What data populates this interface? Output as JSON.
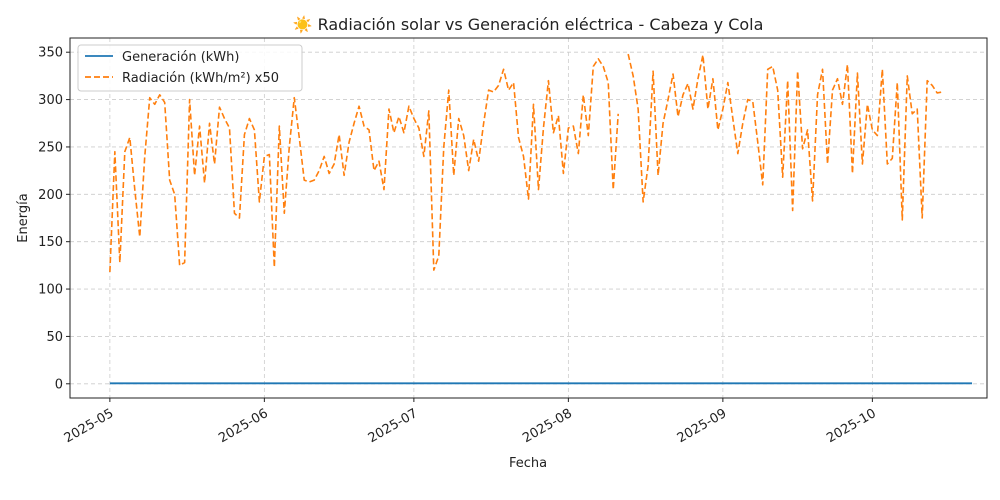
{
  "chart_data": {
    "type": "line",
    "title": "☀️ Radiación solar vs Generación eléctrica - Cabeza y Cola",
    "xlabel": "Fecha",
    "ylabel": "Energía",
    "xlim": [
      "2025-04-23",
      "2025-10-24"
    ],
    "ylim": [
      -15,
      365
    ],
    "yticks": [
      0,
      50,
      100,
      150,
      200,
      250,
      300,
      350
    ],
    "xticks": [
      "2025-05-01",
      "2025-06-01",
      "2025-07-01",
      "2025-08-01",
      "2025-09-01",
      "2025-10-01"
    ],
    "xtick_labels": [
      "2025-05",
      "2025-06",
      "2025-07",
      "2025-08",
      "2025-09",
      "2025-10"
    ],
    "grid": true,
    "legend_position": "top-left",
    "series": [
      {
        "name": "Generación (kWh)",
        "color": "#1f77b4",
        "style": "solid",
        "x_start": "2025-05-01",
        "x_end": "2025-10-21",
        "value": 0.5
      },
      {
        "name": "Radiación (kWh/m²) x50",
        "color": "#ff7f0e",
        "style": "dashed",
        "points": [
          [
            "2025-05-01",
            118
          ],
          [
            "2025-05-02",
            245
          ],
          [
            "2025-05-03",
            128
          ],
          [
            "2025-05-04",
            245
          ],
          [
            "2025-05-05",
            260
          ],
          [
            "2025-05-06",
            205
          ],
          [
            "2025-05-07",
            155
          ],
          [
            "2025-05-08",
            240
          ],
          [
            "2025-05-09",
            302
          ],
          [
            "2025-05-10",
            295
          ],
          [
            "2025-05-11",
            305
          ],
          [
            "2025-05-12",
            297
          ],
          [
            "2025-05-13",
            215
          ],
          [
            "2025-05-14",
            200
          ],
          [
            "2025-05-15",
            125
          ],
          [
            "2025-05-16",
            128
          ],
          [
            "2025-05-17",
            300
          ],
          [
            "2025-05-18",
            220
          ],
          [
            "2025-05-19",
            272
          ],
          [
            "2025-05-20",
            212
          ],
          [
            "2025-05-21",
            275
          ],
          [
            "2025-05-22",
            232
          ],
          [
            "2025-05-23",
            292
          ],
          [
            "2025-05-24",
            280
          ],
          [
            "2025-05-25",
            270
          ],
          [
            "2025-05-26",
            180
          ],
          [
            "2025-05-27",
            175
          ],
          [
            "2025-05-28",
            263
          ],
          [
            "2025-05-29",
            280
          ],
          [
            "2025-05-30",
            268
          ],
          [
            "2025-05-31",
            192
          ],
          [
            "2025-06-01",
            240
          ],
          [
            "2025-06-02",
            242
          ],
          [
            "2025-06-03",
            123
          ],
          [
            "2025-06-04",
            272
          ],
          [
            "2025-06-05",
            180
          ],
          [
            "2025-06-06",
            250
          ],
          [
            "2025-06-07",
            302
          ],
          [
            "2025-06-08",
            260
          ],
          [
            "2025-06-09",
            215
          ],
          [
            "2025-06-10",
            213
          ],
          [
            "2025-06-11",
            215
          ],
          [
            "2025-06-12",
            225
          ],
          [
            "2025-06-13",
            240
          ],
          [
            "2025-06-14",
            222
          ],
          [
            "2025-06-15",
            232
          ],
          [
            "2025-06-16",
            263
          ],
          [
            "2025-06-17",
            220
          ],
          [
            "2025-06-18",
            255
          ],
          [
            "2025-06-19",
            275
          ],
          [
            "2025-06-20",
            293
          ],
          [
            "2025-06-21",
            272
          ],
          [
            "2025-06-22",
            268
          ],
          [
            "2025-06-23",
            225
          ],
          [
            "2025-06-24",
            235
          ],
          [
            "2025-06-25",
            205
          ],
          [
            "2025-06-26",
            290
          ],
          [
            "2025-06-27",
            265
          ],
          [
            "2025-06-28",
            282
          ],
          [
            "2025-06-29",
            265
          ],
          [
            "2025-06-30",
            293
          ],
          [
            "2025-07-01",
            280
          ],
          [
            "2025-07-02",
            270
          ],
          [
            "2025-07-03",
            240
          ],
          [
            "2025-07-04",
            288
          ],
          [
            "2025-07-05",
            120
          ],
          [
            "2025-07-06",
            135
          ],
          [
            "2025-07-07",
            250
          ],
          [
            "2025-07-08",
            310
          ],
          [
            "2025-07-09",
            220
          ],
          [
            "2025-07-10",
            280
          ],
          [
            "2025-07-11",
            262
          ],
          [
            "2025-07-12",
            225
          ],
          [
            "2025-07-13",
            258
          ],
          [
            "2025-07-14",
            235
          ],
          [
            "2025-07-15",
            275
          ],
          [
            "2025-07-16",
            310
          ],
          [
            "2025-07-17",
            308
          ],
          [
            "2025-07-18",
            315
          ],
          [
            "2025-07-19",
            332
          ],
          [
            "2025-07-20",
            310
          ],
          [
            "2025-07-21",
            318
          ],
          [
            "2025-07-22",
            260
          ],
          [
            "2025-07-23",
            240
          ],
          [
            "2025-07-24",
            195
          ],
          [
            "2025-07-25",
            295
          ],
          [
            "2025-07-26",
            205
          ],
          [
            "2025-07-27",
            270
          ],
          [
            "2025-07-28",
            320
          ],
          [
            "2025-07-29",
            265
          ],
          [
            "2025-07-30",
            283
          ],
          [
            "2025-07-31",
            222
          ],
          [
            "2025-08-01",
            270
          ],
          [
            "2025-08-02",
            272
          ],
          [
            "2025-08-03",
            243
          ],
          [
            "2025-08-04",
            305
          ],
          [
            "2025-08-05",
            262
          ],
          [
            "2025-08-06",
            335
          ],
          [
            "2025-08-07",
            343
          ],
          [
            "2025-08-08",
            335
          ],
          [
            "2025-08-09",
            318
          ],
          [
            "2025-08-10",
            205
          ],
          [
            "2025-08-11",
            285
          ],
          [
            "2025-08-12",
            null
          ],
          [
            "2025-08-13",
            348
          ],
          [
            "2025-08-14",
            325
          ],
          [
            "2025-08-15",
            290
          ],
          [
            "2025-08-16",
            192
          ],
          [
            "2025-08-17",
            230
          ],
          [
            "2025-08-18",
            330
          ],
          [
            "2025-08-19",
            220
          ],
          [
            "2025-08-20",
            275
          ],
          [
            "2025-08-21",
            300
          ],
          [
            "2025-08-22",
            327
          ],
          [
            "2025-08-23",
            282
          ],
          [
            "2025-08-24",
            305
          ],
          [
            "2025-08-25",
            317
          ],
          [
            "2025-08-26",
            290
          ],
          [
            "2025-08-27",
            322
          ],
          [
            "2025-08-28",
            347
          ],
          [
            "2025-08-29",
            290
          ],
          [
            "2025-08-30",
            322
          ],
          [
            "2025-08-31",
            268
          ],
          [
            "2025-09-01",
            290
          ],
          [
            "2025-09-02",
            318
          ],
          [
            "2025-09-03",
            280
          ],
          [
            "2025-09-04",
            243
          ],
          [
            "2025-09-05",
            275
          ],
          [
            "2025-09-06",
            300
          ],
          [
            "2025-09-07",
            298
          ],
          [
            "2025-09-08",
            255
          ],
          [
            "2025-09-09",
            210
          ],
          [
            "2025-09-10",
            332
          ],
          [
            "2025-09-11",
            335
          ],
          [
            "2025-09-12",
            310
          ],
          [
            "2025-09-13",
            218
          ],
          [
            "2025-09-14",
            320
          ],
          [
            "2025-09-15",
            183
          ],
          [
            "2025-09-16",
            330
          ],
          [
            "2025-09-17",
            248
          ],
          [
            "2025-09-18",
            268
          ],
          [
            "2025-09-19",
            193
          ],
          [
            "2025-09-20",
            305
          ],
          [
            "2025-09-21",
            332
          ],
          [
            "2025-09-22",
            232
          ],
          [
            "2025-09-23",
            310
          ],
          [
            "2025-09-24",
            322
          ],
          [
            "2025-09-25",
            295
          ],
          [
            "2025-09-26",
            337
          ],
          [
            "2025-09-27",
            222
          ],
          [
            "2025-09-28",
            328
          ],
          [
            "2025-09-29",
            232
          ],
          [
            "2025-09-30",
            295
          ],
          [
            "2025-10-01",
            268
          ],
          [
            "2025-10-02",
            262
          ],
          [
            "2025-10-03",
            332
          ],
          [
            "2025-10-04",
            232
          ],
          [
            "2025-10-05",
            238
          ],
          [
            "2025-10-06",
            318
          ],
          [
            "2025-10-07",
            173
          ],
          [
            "2025-10-08",
            325
          ],
          [
            "2025-10-09",
            285
          ],
          [
            "2025-10-10",
            290
          ],
          [
            "2025-10-11",
            175
          ],
          [
            "2025-10-12",
            320
          ],
          [
            "2025-10-13",
            315
          ],
          [
            "2025-10-14",
            307
          ],
          [
            "2025-10-15",
            308
          ]
        ]
      }
    ]
  }
}
